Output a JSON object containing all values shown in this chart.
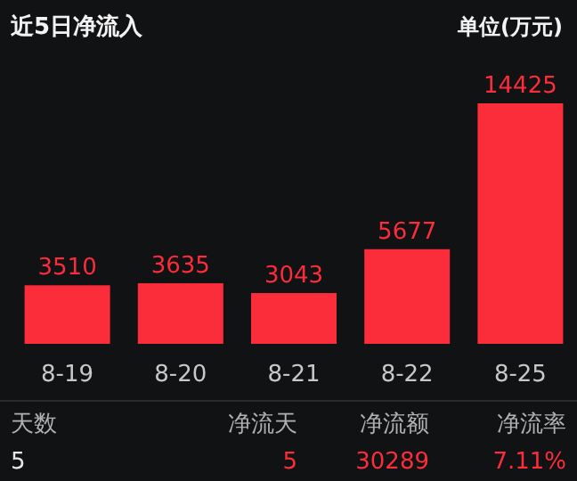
{
  "chart_data": {
    "type": "bar",
    "title": "近5日净流入",
    "subtitle": "单位(万元)",
    "categories": [
      "8-19",
      "8-20",
      "8-21",
      "8-22",
      "8-25"
    ],
    "values": [
      3510,
      3635,
      3043,
      5677,
      14425
    ],
    "color": "#fc2d3a",
    "data_labels": true,
    "annotations": [
      "天数",
      "净流天",
      "净流额",
      "净流率",
      "5",
      "5",
      "30289",
      "7.11%"
    ]
  }
}
